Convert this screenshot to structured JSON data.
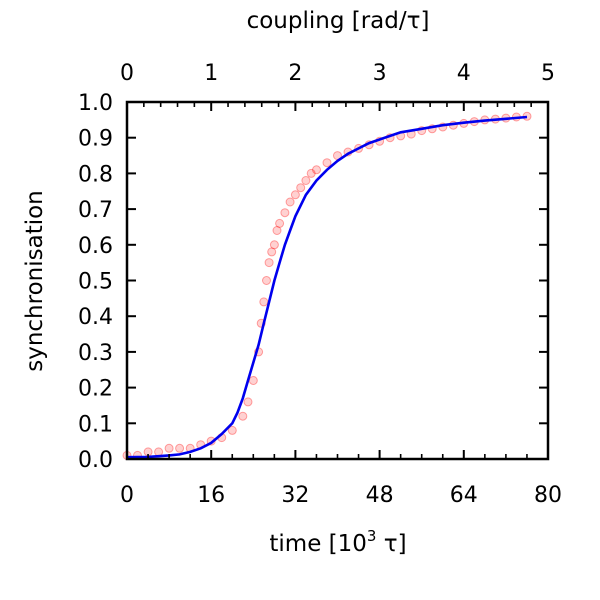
{
  "chart_data": {
    "type": "scatter",
    "title": "",
    "xlabel_prefix": "time [10",
    "xlabel_exp": "3",
    "xlabel_suffix": " τ]",
    "x2label": "coupling [rad/τ]",
    "ylabel": "synchronisation",
    "xlim": [
      0,
      80
    ],
    "x2lim": [
      0,
      5
    ],
    "ylim": [
      0,
      1
    ],
    "x_ticks": [
      "0",
      "16",
      "32",
      "48",
      "64",
      "80"
    ],
    "x2_ticks": [
      "0",
      "1",
      "2",
      "3",
      "4",
      "5"
    ],
    "y_ticks": [
      "0.0",
      "0.1",
      "0.2",
      "0.3",
      "0.4",
      "0.5",
      "0.6",
      "0.7",
      "0.8",
      "0.9",
      "1.0"
    ],
    "grid": false,
    "colors": {
      "scatter": "#ff0000",
      "fit": "#0000ee"
    },
    "series": [
      {
        "kind": "scatter",
        "x": [
          0,
          2,
          4,
          6,
          8,
          10,
          12,
          14,
          16,
          18,
          20,
          22,
          23,
          24,
          25,
          25.5,
          26,
          26.5,
          27,
          27.5,
          28,
          28.5,
          29,
          30,
          31,
          32,
          33,
          34,
          35,
          36,
          38,
          40,
          42,
          44,
          46,
          48,
          50,
          52,
          54,
          56,
          58,
          60,
          62,
          64,
          66,
          68,
          70,
          72,
          74,
          76
        ],
        "y": [
          0.01,
          0.01,
          0.02,
          0.02,
          0.03,
          0.03,
          0.03,
          0.04,
          0.05,
          0.06,
          0.08,
          0.12,
          0.16,
          0.22,
          0.3,
          0.38,
          0.44,
          0.5,
          0.55,
          0.58,
          0.6,
          0.64,
          0.66,
          0.69,
          0.72,
          0.74,
          0.76,
          0.78,
          0.8,
          0.81,
          0.83,
          0.85,
          0.86,
          0.87,
          0.88,
          0.89,
          0.9,
          0.905,
          0.91,
          0.92,
          0.925,
          0.93,
          0.935,
          0.94,
          0.945,
          0.95,
          0.952,
          0.955,
          0.958,
          0.96
        ]
      },
      {
        "kind": "line",
        "x": [
          0,
          4,
          8,
          10,
          12,
          14,
          16,
          18,
          20,
          21,
          22,
          23,
          24,
          25,
          26,
          27,
          28,
          29,
          30,
          31,
          32,
          34,
          36,
          38,
          40,
          42,
          44,
          46,
          48,
          50,
          52,
          56,
          60,
          64,
          68,
          72,
          76
        ],
        "y": [
          0.005,
          0.006,
          0.01,
          0.013,
          0.02,
          0.03,
          0.045,
          0.07,
          0.1,
          0.13,
          0.17,
          0.22,
          0.27,
          0.32,
          0.38,
          0.44,
          0.5,
          0.55,
          0.6,
          0.64,
          0.68,
          0.74,
          0.78,
          0.81,
          0.835,
          0.855,
          0.87,
          0.885,
          0.895,
          0.905,
          0.915,
          0.925,
          0.935,
          0.942,
          0.948,
          0.953,
          0.958
        ]
      }
    ]
  }
}
